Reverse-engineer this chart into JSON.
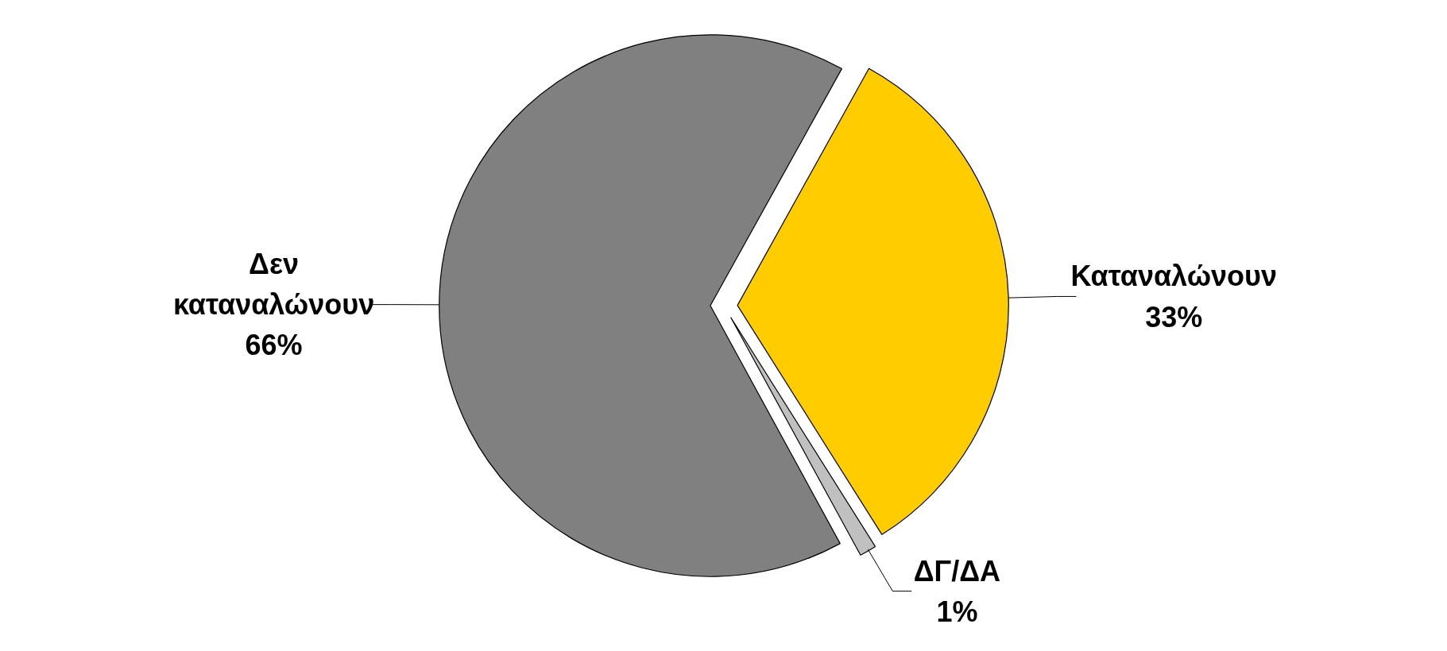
{
  "chart_data": {
    "type": "pie",
    "categories": [
      "Καταναλώνουν",
      "ΔΓ/ΔΑ",
      "Δεν καταναλώνουν"
    ],
    "values": [
      33,
      1,
      66
    ],
    "colors": [
      "#ffcc00",
      "#c0c0c0",
      "#808080"
    ],
    "value_labels": [
      "33%",
      "1%",
      "66%"
    ]
  }
}
